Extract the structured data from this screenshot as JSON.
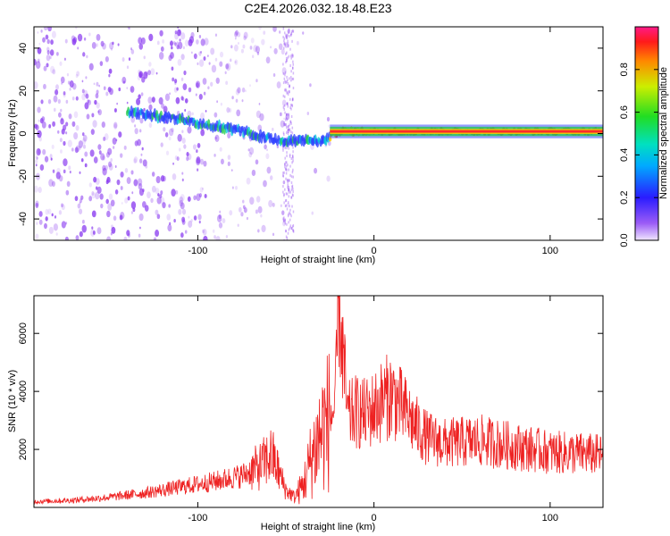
{
  "title": "C2E4.2026.032.18.48.E23",
  "colors": {
    "signal": "#ee2222",
    "scatter": "#8a3cf0",
    "band_high": "#ff2a2a",
    "band_mid": "#22cc44",
    "band_low": "#2a3cff"
  },
  "chart_data": [
    {
      "type": "heatmap",
      "xlabel": "Height of straight line (km)",
      "ylabel": "Frequency (Hz)",
      "xlim": [
        -193,
        130
      ],
      "ylim": [
        -50,
        50
      ],
      "xticks": [
        -100,
        0,
        100
      ],
      "yticks": [
        -40,
        -20,
        0,
        20,
        40
      ],
      "grid": false,
      "ridge": {
        "x": [
          -140,
          -120,
          -100,
          -80,
          -60,
          -50,
          -40,
          -30,
          -20,
          0,
          40,
          80,
          130
        ],
        "y": [
          10,
          8,
          5,
          2,
          -2,
          -4,
          -3,
          -4,
          1,
          1,
          1,
          1,
          1
        ]
      },
      "colorbar": {
        "label": "Normalized spectral amplitude",
        "range": [
          0,
          1
        ],
        "ticks": [
          0.0,
          0.2,
          0.4,
          0.6,
          0.8
        ],
        "tick_labels": [
          "0.0",
          "0.2",
          "0.4",
          "0.6",
          "0.8"
        ],
        "colormap": "hsv-rainbow"
      }
    },
    {
      "type": "line",
      "xlabel": "Height of straight line (km)",
      "ylabel": "SNR (10 * v/v)",
      "xlim": [
        -193,
        130
      ],
      "ylim": [
        0,
        7300
      ],
      "xticks": [
        -100,
        0,
        100
      ],
      "yticks": [
        2000,
        4000,
        6000
      ],
      "grid": false,
      "series": [
        {
          "x": [
            -193,
            -170,
            -150,
            -130,
            -110,
            -90,
            -75,
            -65,
            -58,
            -50,
            -45,
            -40,
            -35,
            -30,
            -26,
            -22,
            -20,
            -15,
            -10,
            -5,
            0,
            5,
            10,
            15,
            20,
            25,
            30,
            40,
            60,
            80,
            100,
            120,
            130
          ],
          "y": [
            200,
            250,
            350,
            500,
            700,
            900,
            1100,
            1400,
            1800,
            600,
            350,
            800,
            1800,
            2600,
            3000,
            3400,
            7200,
            3100,
            3300,
            3200,
            3400,
            3700,
            3900,
            3500,
            3100,
            2700,
            2400,
            2200,
            2300,
            2100,
            1900,
            1850,
            1800
          ]
        }
      ]
    }
  ]
}
